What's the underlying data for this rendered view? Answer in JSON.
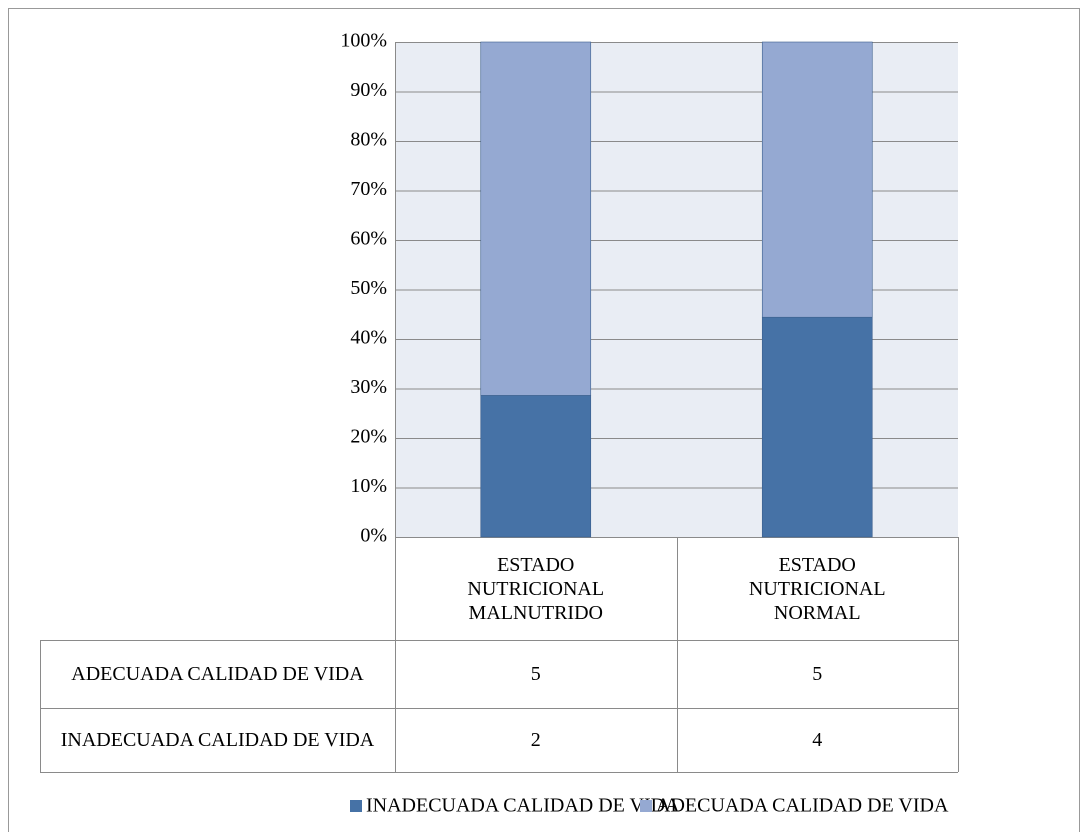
{
  "chart_data": {
    "type": "stacked_bar",
    "categories": [
      "ESTADO NUTRICIONAL MALNUTRIDO",
      "ESTADO NUTRICIONAL NORMAL"
    ],
    "series": [
      {
        "name": "INADECUADA CALIDAD DE VIDA",
        "color": "#4672a6",
        "values": [
          28.6,
          44.4
        ],
        "counts": [
          2,
          4
        ]
      },
      {
        "name": "ADECUADA CALIDAD DE VIDA",
        "color": "#95a9d2",
        "values": [
          71.4,
          55.6
        ],
        "counts": [
          5,
          5
        ]
      }
    ],
    "ylim": [
      0,
      100
    ],
    "yticks": [
      {
        "value": 0,
        "label": "0%"
      },
      {
        "value": 10,
        "label": "10%"
      },
      {
        "value": 20,
        "label": "20%"
      },
      {
        "value": 30,
        "label": "30%"
      },
      {
        "value": 40,
        "label": "40%"
      },
      {
        "value": 50,
        "label": "50%"
      },
      {
        "value": 60,
        "label": "60%"
      },
      {
        "value": 70,
        "label": "70%"
      },
      {
        "value": 80,
        "label": "80%"
      },
      {
        "value": 90,
        "label": "90%"
      },
      {
        "value": 100,
        "label": "100%"
      }
    ],
    "grid": true,
    "legend": "bottom"
  }
}
